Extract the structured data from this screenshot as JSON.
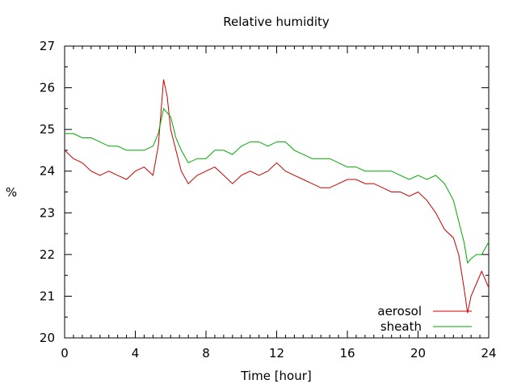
{
  "chart_data": {
    "type": "line",
    "title": "Relative humidity",
    "xlabel": "Time [hour]",
    "ylabel": "%",
    "xlim": [
      0,
      24
    ],
    "ylim": [
      20,
      27
    ],
    "xticks": [
      0,
      4,
      8,
      12,
      16,
      20,
      24
    ],
    "yticks": [
      20,
      21,
      22,
      23,
      24,
      25,
      26,
      27
    ],
    "grid": false,
    "legend": "bottom-right",
    "series": [
      {
        "name": "aerosol",
        "color": "#cc0000",
        "x": [
          0,
          0.5,
          1,
          1.5,
          2,
          2.5,
          3,
          3.5,
          4,
          4.5,
          5,
          5.3,
          5.6,
          5.8,
          6,
          6.3,
          6.6,
          7,
          7.5,
          8,
          8.5,
          9,
          9.5,
          10,
          10.5,
          11,
          11.5,
          12,
          12.5,
          13,
          13.5,
          14,
          14.5,
          15,
          15.5,
          16,
          16.5,
          17,
          17.5,
          18,
          18.5,
          19,
          19.5,
          20,
          20.5,
          21,
          21.5,
          22,
          22.3,
          22.6,
          22.8,
          23,
          23.3,
          23.6,
          24
        ],
        "values": [
          24.5,
          24.3,
          24.2,
          24.0,
          23.9,
          24.0,
          23.9,
          23.8,
          24.0,
          24.1,
          23.9,
          24.6,
          26.2,
          25.8,
          25.0,
          24.5,
          24.0,
          23.7,
          23.9,
          24.0,
          24.1,
          23.9,
          23.7,
          23.9,
          24.0,
          23.9,
          24.0,
          24.2,
          24.0,
          23.9,
          23.8,
          23.7,
          23.6,
          23.6,
          23.7,
          23.8,
          23.8,
          23.7,
          23.7,
          23.6,
          23.5,
          23.5,
          23.4,
          23.5,
          23.3,
          23.0,
          22.6,
          22.4,
          22.0,
          21.2,
          20.6,
          21.0,
          21.3,
          21.6,
          21.2
        ]
      },
      {
        "name": "sheath",
        "color": "#00aa00",
        "x": [
          0,
          0.5,
          1,
          1.5,
          2,
          2.5,
          3,
          3.5,
          4,
          4.5,
          5,
          5.3,
          5.6,
          5.8,
          6,
          6.3,
          6.6,
          7,
          7.5,
          8,
          8.5,
          9,
          9.5,
          10,
          10.5,
          11,
          11.5,
          12,
          12.5,
          13,
          13.5,
          14,
          14.5,
          15,
          15.5,
          16,
          16.5,
          17,
          17.5,
          18,
          18.5,
          19,
          19.5,
          20,
          20.5,
          21,
          21.5,
          22,
          22.3,
          22.6,
          22.8,
          23,
          23.3,
          23.6,
          24
        ],
        "values": [
          24.9,
          24.9,
          24.8,
          24.8,
          24.7,
          24.6,
          24.6,
          24.5,
          24.5,
          24.5,
          24.6,
          24.9,
          25.5,
          25.4,
          25.3,
          24.8,
          24.5,
          24.2,
          24.3,
          24.3,
          24.5,
          24.5,
          24.4,
          24.6,
          24.7,
          24.7,
          24.6,
          24.7,
          24.7,
          24.5,
          24.4,
          24.3,
          24.3,
          24.3,
          24.2,
          24.1,
          24.1,
          24.0,
          24.0,
          24.0,
          24.0,
          23.9,
          23.8,
          23.9,
          23.8,
          23.9,
          23.7,
          23.3,
          22.8,
          22.3,
          21.8,
          21.9,
          22.0,
          22.0,
          22.3
        ]
      }
    ]
  }
}
